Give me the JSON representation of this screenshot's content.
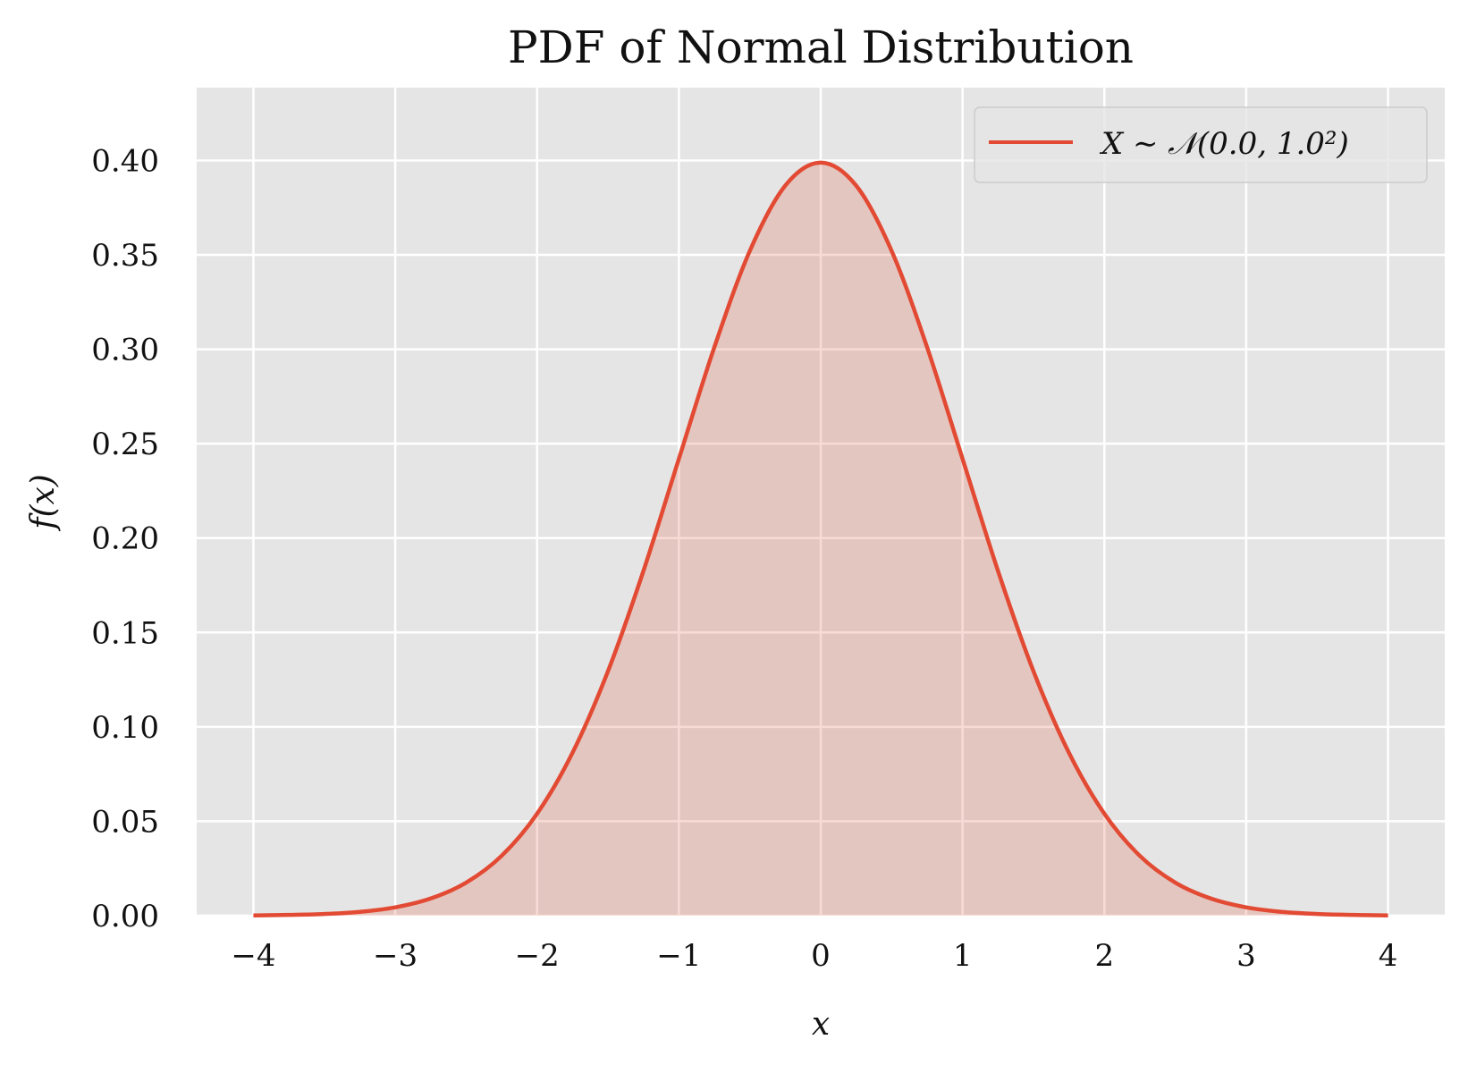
{
  "chart_data": {
    "type": "line",
    "title": "PDF of Normal Distribution",
    "xlabel": "x",
    "ylabel": "f(x)",
    "xlim": [
      -4.4,
      4.4
    ],
    "ylim": [
      0,
      0.4386
    ],
    "xticks": [
      -4,
      -3,
      -2,
      -1,
      0,
      1,
      2,
      3,
      4
    ],
    "xtick_labels": [
      "−4",
      "−3",
      "−2",
      "−1",
      "0",
      "1",
      "2",
      "3",
      "4"
    ],
    "yticks": [
      0.0,
      0.05,
      0.1,
      0.15,
      0.2,
      0.25,
      0.3,
      0.35,
      0.4
    ],
    "ytick_labels": [
      "0.00",
      "0.05",
      "0.10",
      "0.15",
      "0.20",
      "0.25",
      "0.30",
      "0.35",
      "0.40"
    ],
    "grid": true,
    "legend_position": "top-right",
    "series": [
      {
        "name": "X ∼ 𝒩(0.0, 1.0²)",
        "color": "#e24a33",
        "fill_color": "#e24a33",
        "fill_under": true,
        "x": [
          -4.0,
          -3.75,
          -3.5,
          -3.25,
          -3.0,
          -2.75,
          -2.5,
          -2.25,
          -2.0,
          -1.75,
          -1.5,
          -1.25,
          -1.0,
          -0.75,
          -0.5,
          -0.25,
          0.0,
          0.25,
          0.5,
          0.75,
          1.0,
          1.25,
          1.5,
          1.75,
          2.0,
          2.25,
          2.5,
          2.75,
          3.0,
          3.25,
          3.5,
          3.75,
          4.0
        ],
        "y": [
          0.0001,
          0.0004,
          0.0009,
          0.002,
          0.0044,
          0.0091,
          0.0175,
          0.0317,
          0.054,
          0.0863,
          0.1295,
          0.1826,
          0.242,
          0.3011,
          0.3521,
          0.3867,
          0.3989,
          0.3867,
          0.3521,
          0.3011,
          0.242,
          0.1826,
          0.1295,
          0.0863,
          0.054,
          0.0317,
          0.0175,
          0.0091,
          0.0044,
          0.002,
          0.0009,
          0.0004,
          0.0001
        ]
      }
    ]
  },
  "colors": {
    "plot_background": "#e5e5e5",
    "grid": "#ffffff",
    "line": "#e24a33"
  }
}
